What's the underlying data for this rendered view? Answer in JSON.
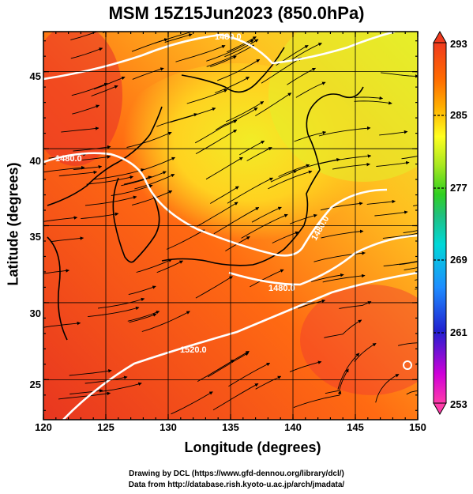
{
  "title": "MSM 15Z15Jun2023 (850.0hPa)",
  "axes": {
    "xlabel": "Longitude (degrees)",
    "ylabel": "Latitude  (degrees)",
    "xticks": [
      "120",
      "125",
      "130",
      "135",
      "140",
      "145",
      "150"
    ],
    "yticks": [
      "25",
      "30",
      "35",
      "40",
      "45"
    ],
    "xrange": [
      120,
      150
    ],
    "yrange": [
      22.4,
      47.6
    ]
  },
  "colorbar": {
    "ticks": [
      "293",
      "285",
      "277",
      "269",
      "261",
      "253"
    ],
    "min": 253,
    "max": 293,
    "colors": [
      "#ff3caa",
      "#d000d8",
      "#2020d0",
      "#1e8cff",
      "#00d8d8",
      "#20c080",
      "#30d020",
      "#a8e820",
      "#ffff20",
      "#ffb000",
      "#ff6a00",
      "#f03a1e"
    ]
  },
  "contour_labels": [
    "1480.0",
    "1480.0",
    "1480.0",
    "1480.0",
    "1520.0"
  ],
  "credits": [
    "Drawing by DCL (https://www.gfd-dennou.org/library/dcl/)",
    "Data from http://database.rish.kyoto-u.ac.jp/arch/jmadata/"
  ],
  "colors": {
    "warm": "#f0421e",
    "mid": "#ff7a10",
    "cool": "#f4e624",
    "contour": "#ffffff",
    "coast": "#000000"
  }
}
